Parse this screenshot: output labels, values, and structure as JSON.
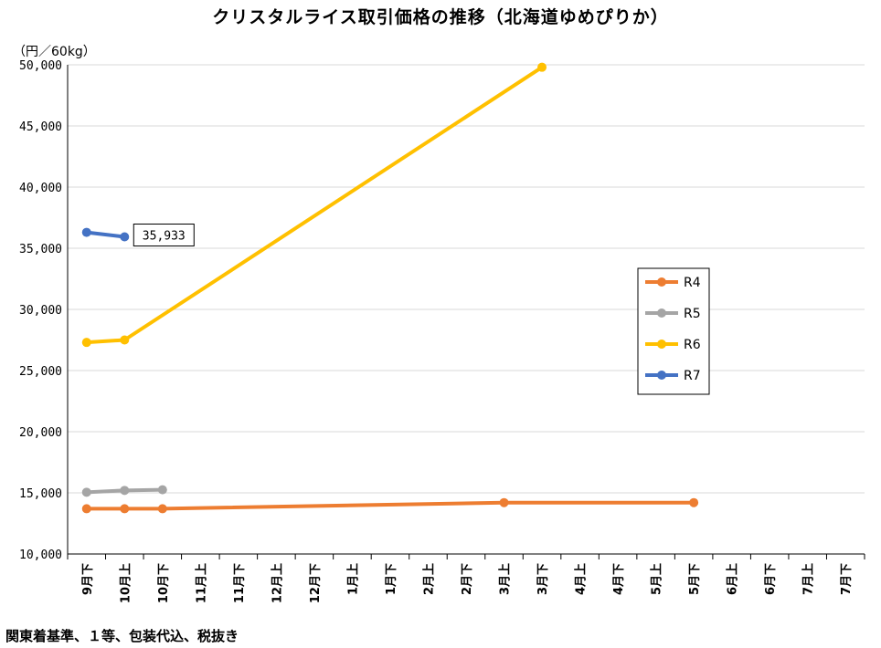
{
  "title": "クリスタルライス取引価格の推移（北海道ゆめぴりか）",
  "unit_label": "（円／60kg）",
  "footnote": "関東着基準、１等、包装代込、税抜き",
  "chart_data": {
    "type": "line",
    "title": "クリスタルライス取引価格の推移（北海道ゆめぴりか）",
    "ylabel": "（円／60kg）",
    "ylim": [
      10000,
      50000
    ],
    "yticks": [
      10000,
      15000,
      20000,
      25000,
      30000,
      35000,
      40000,
      45000,
      50000
    ],
    "ytick_labels": [
      "10,000",
      "15,000",
      "20,000",
      "25,000",
      "30,000",
      "35,000",
      "40,000",
      "45,000",
      "50,000"
    ],
    "grid": true,
    "legend_position": "right",
    "categories": [
      "9月下",
      "10月上",
      "10月下",
      "11月上",
      "11月下",
      "12月上",
      "12月下",
      "1月上",
      "1月下",
      "2月上",
      "2月下",
      "3月上",
      "3月下",
      "4月上",
      "4月下",
      "5月上",
      "5月下",
      "6月上",
      "6月下",
      "7月上",
      "7月下"
    ],
    "series": [
      {
        "name": "R4",
        "color": "#ED7D31",
        "values": [
          13700,
          13700,
          13700,
          null,
          null,
          null,
          null,
          null,
          null,
          null,
          null,
          14200,
          null,
          null,
          null,
          null,
          14200,
          null,
          null,
          null,
          null
        ]
      },
      {
        "name": "R5",
        "color": "#A5A5A5",
        "values": [
          15050,
          15200,
          15250,
          null,
          null,
          null,
          null,
          null,
          null,
          null,
          null,
          null,
          null,
          null,
          null,
          null,
          null,
          null,
          null,
          null,
          null
        ]
      },
      {
        "name": "R6",
        "color": "#FFC000",
        "values": [
          27300,
          27500,
          null,
          null,
          null,
          null,
          null,
          null,
          null,
          null,
          null,
          null,
          49800,
          null,
          null,
          null,
          null,
          null,
          null,
          null,
          null
        ]
      },
      {
        "name": "R7",
        "color": "#4472C4",
        "values": [
          36300,
          35933,
          null,
          null,
          null,
          null,
          null,
          null,
          null,
          null,
          null,
          null,
          null,
          null,
          null,
          null,
          null,
          null,
          null,
          null,
          null
        ]
      }
    ],
    "annotations": [
      {
        "series": "R7",
        "category": "10月上",
        "text": "35,933"
      }
    ]
  }
}
